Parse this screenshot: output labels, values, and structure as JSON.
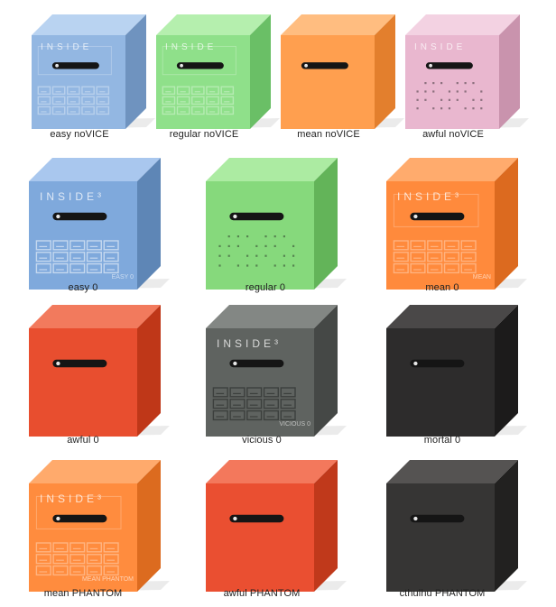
{
  "cubes": [
    {
      "caption": "easy noVICE",
      "front": "#93b7e2",
      "top": "#b9d3f1",
      "side": "#6f93bf",
      "pattern": "maze-light",
      "brand": "INSIDE",
      "mark": ""
    },
    {
      "caption": "regular noVICE",
      "front": "#8fe08a",
      "top": "#b5efae",
      "side": "#6abf66",
      "pattern": "maze-light",
      "brand": "INSIDE",
      "mark": ""
    },
    {
      "caption": "mean noVICE",
      "front": "#ff9f4f",
      "top": "#ffbd80",
      "side": "#e37f2d",
      "pattern": "none",
      "brand": "",
      "mark": ""
    },
    {
      "caption": "awful noVICE",
      "front": "#e9b7cf",
      "top": "#f3d2e2",
      "side": "#c993ad",
      "pattern": "dots",
      "brand": "INSIDE",
      "mark": ""
    },
    {
      "caption": "easy 0",
      "front": "#7fa9dc",
      "top": "#a9c7ee",
      "side": "#5e86b6",
      "pattern": "maze",
      "brand": "INSIDE³",
      "mark": "EASY 0"
    },
    {
      "caption": "regular 0",
      "front": "#86d97c",
      "top": "#aceba2",
      "side": "#63b459",
      "pattern": "dots",
      "brand": "",
      "mark": ""
    },
    {
      "caption": "mean 0",
      "front": "#ff8a3c",
      "top": "#ffab6d",
      "side": "#dc6a1f",
      "pattern": "maze-light",
      "brand": "INSIDE³",
      "mark": "MEAN"
    },
    {
      "caption": "awful 0",
      "front": "#e84e2f",
      "top": "#f27a5d",
      "side": "#bf3718",
      "pattern": "none",
      "brand": "",
      "mark": ""
    },
    {
      "caption": "vicious 0",
      "front": "#5f6360",
      "top": "#838784",
      "side": "#454846",
      "pattern": "maze",
      "brand": "INSIDE³",
      "mark": "VICIOUS 0"
    },
    {
      "caption": "mortal 0",
      "front": "#2d2c2c",
      "top": "#4a4848",
      "side": "#1c1b1b",
      "pattern": "none",
      "brand": "",
      "mark": ""
    },
    {
      "caption": "mean PHANTOM",
      "front": "#ff8c3e",
      "top": "#ffaa6c",
      "side": "#dc6b1f",
      "pattern": "maze-light",
      "brand": "INSIDE³",
      "mark": "MEAN PHANTOM"
    },
    {
      "caption": "awful PHANTOM",
      "front": "#ea4f31",
      "top": "#f3785c",
      "side": "#c0391b",
      "pattern": "none",
      "brand": "",
      "mark": ""
    },
    {
      "caption": "cthulhu PHANTOM",
      "front": "#363534",
      "top": "#555352",
      "side": "#222120",
      "pattern": "none",
      "brand": "",
      "mark": ""
    }
  ]
}
